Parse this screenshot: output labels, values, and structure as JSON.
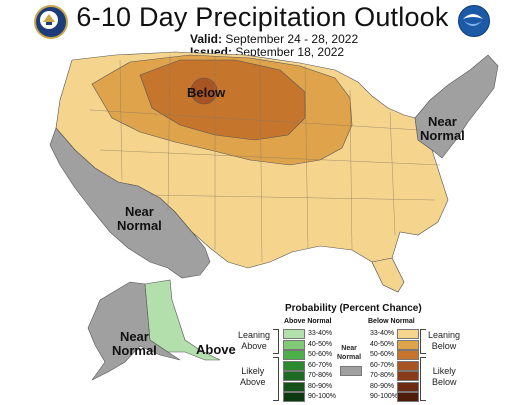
{
  "title": "6-10 Day Precipitation Outlook",
  "valid_label": "Valid:",
  "valid_dates": "September 24 - 28, 2022",
  "issued_label": "Issued:",
  "issued_date": "September 18, 2022",
  "map_labels": {
    "below": "Below",
    "near_normal_east": "Near\nNormal",
    "near_normal_west": "Near\nNormal",
    "near_normal_alaska": "Near\nNormal",
    "above_alaska": "Above"
  },
  "legend": {
    "title": "Probability (Percent Chance)",
    "above_header": "Above Normal",
    "below_header": "Below Normal",
    "near_label": "Near\nNormal",
    "leaning_above": "Leaning\nAbove",
    "likely_above": "Likely\nAbove",
    "leaning_below": "Leaning\nBelow",
    "likely_below": "Likely\nBelow",
    "ranges": [
      "33-40%",
      "40-50%",
      "50-60%",
      "60-70%",
      "70-80%",
      "80-90%",
      "90-100%"
    ],
    "above_colors": [
      "#b3dfac",
      "#80c977",
      "#4caf47",
      "#2a8a30",
      "#1c6b22",
      "#145219",
      "#0b3a10"
    ],
    "below_colors": [
      "#f5d48e",
      "#dfa34b",
      "#c5752c",
      "#a95423",
      "#8a3c1a",
      "#6e2b13",
      "#4f1c0c"
    ],
    "near_color": "#a0a0a0"
  },
  "icons": {
    "left_logo": "noaa-commerce-seal-icon",
    "right_logo": "noaa-logo-icon"
  }
}
